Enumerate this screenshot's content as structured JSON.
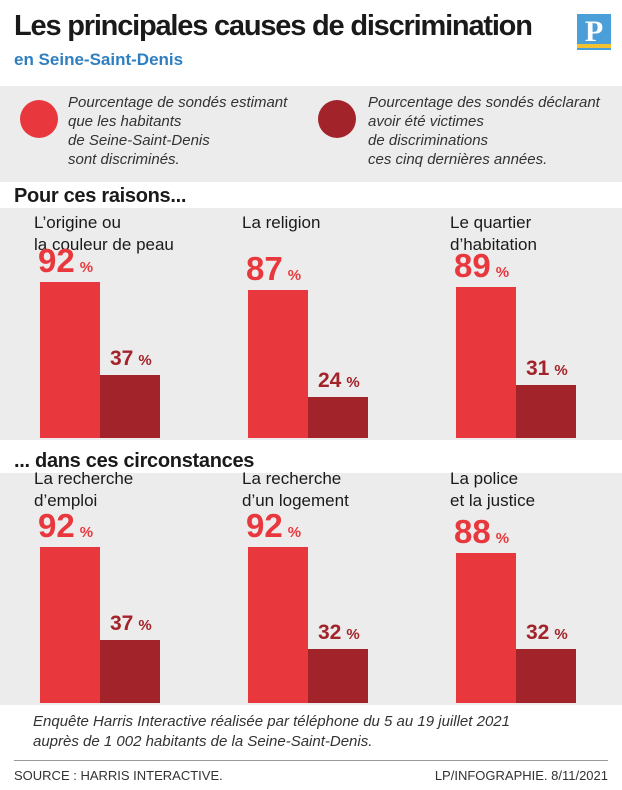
{
  "header": {
    "title": "Les principales causes de discrimination",
    "subtitle": "en Seine-Saint-Denis",
    "logo_letter": "P"
  },
  "colors": {
    "bright_red": "#e8383d",
    "dark_red": "#a3232a",
    "accent_blue": "#2f7fc0"
  },
  "legend": {
    "item1": "Pourcentage de sondés estimant\nque les habitants\nde Seine-Saint-Denis\nsont discriminés.",
    "item2": "Pourcentage des sondés déclarant\navoir été victimes\nde discriminations\nces cinq dernières années."
  },
  "sections": {
    "reasons_title": "Pour ces raisons...",
    "circumstances_title": "... dans ces circonstances"
  },
  "chart_data": [
    {
      "type": "bar",
      "title": "Pour ces raisons...",
      "categories": [
        "L’origine ou\nla couleur de peau",
        "La religion",
        "Le quartier\nd’habitation"
      ],
      "series": [
        {
          "name": "Pourcentage de sondés estimant que les habitants de Seine-Saint-Denis sont discriminés.",
          "values": [
            92,
            87,
            89
          ]
        },
        {
          "name": "Pourcentage des sondés déclarant avoir été victimes de discriminations ces cinq dernières années.",
          "values": [
            37,
            24,
            31
          ]
        }
      ],
      "unit": "%",
      "ylim": [
        0,
        100
      ]
    },
    {
      "type": "bar",
      "title": "... dans ces circonstances",
      "categories": [
        "La recherche\nd’emploi",
        "La recherche\nd’un logement",
        "La police\net la justice"
      ],
      "series": [
        {
          "name": "Pourcentage de sondés estimant que les habitants de Seine-Saint-Denis sont discriminés.",
          "values": [
            92,
            92,
            88
          ]
        },
        {
          "name": "Pourcentage des sondés déclarant avoir été victimes de discriminations ces cinq dernières années.",
          "values": [
            37,
            32,
            32
          ]
        }
      ],
      "unit": "%",
      "ylim": [
        0,
        100
      ]
    }
  ],
  "footer": {
    "note": "Enquête Harris Interactive réalisée par téléphone du 5 au 19 juillet 2021\nauprès de 1 002 habitants de la Seine-Saint-Denis.",
    "source": "SOURCE : HARRIS INTERACTIVE.",
    "credit": "LP/INFOGRAPHIE.  8/11/2021"
  }
}
